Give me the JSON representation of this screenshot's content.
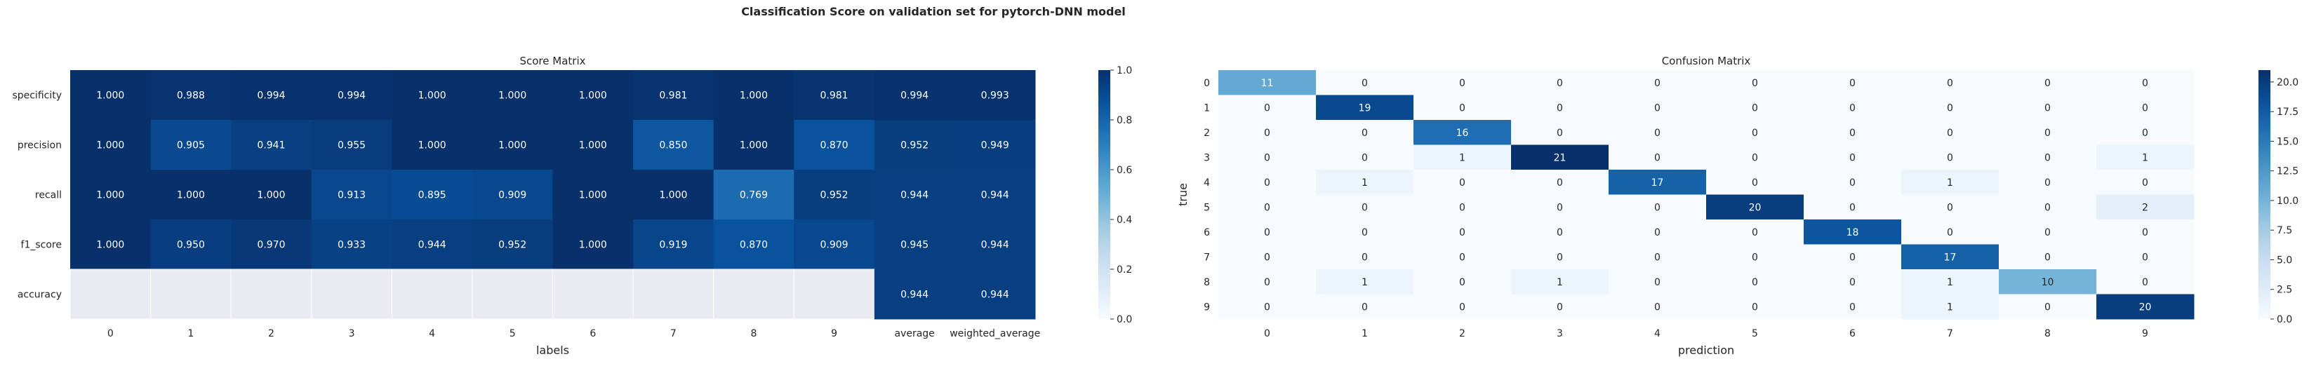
{
  "figure": {
    "suptitle": "Classification Score on validation set for pytorch-DNN model"
  },
  "colors": {
    "scale": [
      "#f7fbff",
      "#deebf7",
      "#c6dbef",
      "#9ecae1",
      "#6baed6",
      "#4292c6",
      "#2171b5",
      "#08519c",
      "#08306b"
    ],
    "missing": "#eaeaf2",
    "grid_line": "#ffffff"
  },
  "chart_data": [
    {
      "type": "heatmap",
      "title": "Score Matrix",
      "xlabel": "labels",
      "ylabel": "",
      "x_categories": [
        "0",
        "1",
        "2",
        "3",
        "4",
        "5",
        "6",
        "7",
        "8",
        "9",
        "average",
        "weighted_average"
      ],
      "y_categories": [
        "specificity",
        "precision",
        "recall",
        "f1_score",
        "accuracy"
      ],
      "values": [
        [
          "1.000",
          "0.988",
          "0.994",
          "0.994",
          "1.000",
          "1.000",
          "1.000",
          "0.981",
          "1.000",
          "0.981",
          "0.994",
          "0.993"
        ],
        [
          "1.000",
          "0.905",
          "0.941",
          "0.955",
          "1.000",
          "1.000",
          "1.000",
          "0.850",
          "1.000",
          "0.870",
          "0.952",
          "0.949"
        ],
        [
          "1.000",
          "1.000",
          "1.000",
          "0.913",
          "0.895",
          "0.909",
          "1.000",
          "1.000",
          "0.769",
          "0.952",
          "0.944",
          "0.944"
        ],
        [
          "1.000",
          "0.950",
          "0.970",
          "0.933",
          "0.944",
          "0.952",
          "1.000",
          "0.919",
          "0.870",
          "0.909",
          "0.945",
          "0.944"
        ],
        [
          null,
          null,
          null,
          null,
          null,
          null,
          null,
          null,
          null,
          null,
          "0.944",
          "0.944"
        ]
      ],
      "vmin": 0,
      "vmax": 1,
      "colorbar_ticks": [
        "0.0",
        "0.2",
        "0.4",
        "0.6",
        "0.8",
        "1.0"
      ]
    },
    {
      "type": "heatmap",
      "title": "Confusion Matrix",
      "xlabel": "prediction",
      "ylabel": "true",
      "x_categories": [
        "0",
        "1",
        "2",
        "3",
        "4",
        "5",
        "6",
        "7",
        "8",
        "9"
      ],
      "y_categories": [
        "0",
        "1",
        "2",
        "3",
        "4",
        "5",
        "6",
        "7",
        "8",
        "9"
      ],
      "values": [
        [
          11,
          0,
          0,
          0,
          0,
          0,
          0,
          0,
          0,
          0
        ],
        [
          0,
          19,
          0,
          0,
          0,
          0,
          0,
          0,
          0,
          0
        ],
        [
          0,
          0,
          16,
          0,
          0,
          0,
          0,
          0,
          0,
          0
        ],
        [
          0,
          0,
          1,
          21,
          0,
          0,
          0,
          0,
          0,
          1
        ],
        [
          0,
          1,
          0,
          0,
          17,
          0,
          0,
          1,
          0,
          0
        ],
        [
          0,
          0,
          0,
          0,
          0,
          20,
          0,
          0,
          0,
          2
        ],
        [
          0,
          0,
          0,
          0,
          0,
          0,
          18,
          0,
          0,
          0
        ],
        [
          0,
          0,
          0,
          0,
          0,
          0,
          0,
          17,
          0,
          0
        ],
        [
          0,
          1,
          0,
          1,
          0,
          0,
          0,
          1,
          10,
          0
        ],
        [
          0,
          0,
          0,
          0,
          0,
          0,
          0,
          1,
          0,
          20
        ]
      ],
      "vmin": 0,
      "vmax": 21,
      "colorbar_ticks": [
        "0.0",
        "2.5",
        "5.0",
        "7.5",
        "10.0",
        "12.5",
        "15.0",
        "17.5",
        "20.0"
      ]
    }
  ]
}
